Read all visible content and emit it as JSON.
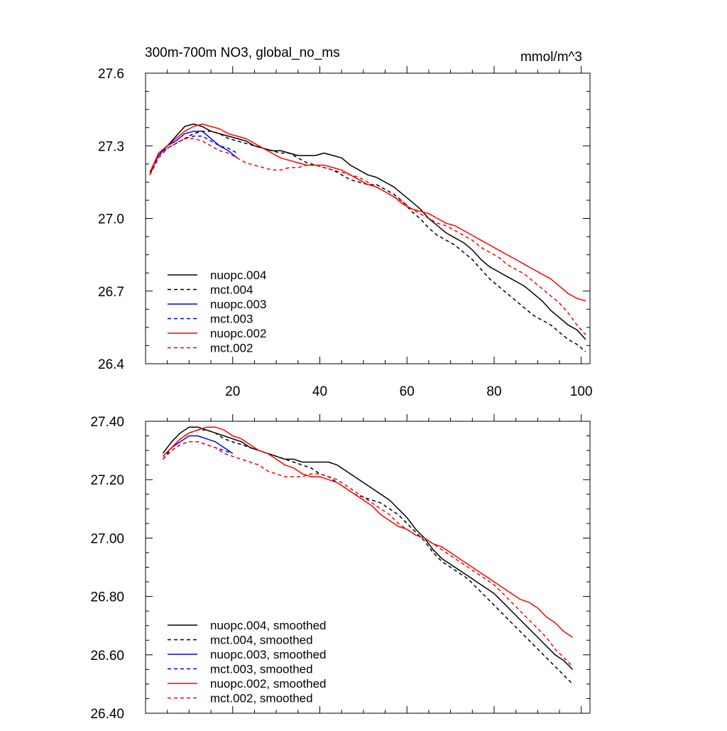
{
  "chart_data": [
    {
      "type": "line",
      "title": "300m-700m NO3, global_no_ms",
      "units": "mmol/m^3",
      "xlabel": "",
      "ylabel": "",
      "xlim": [
        0,
        102
      ],
      "ylim": [
        26.4,
        27.6
      ],
      "x_ticks": [
        20,
        40,
        60,
        80,
        100
      ],
      "y_ticks": [
        "26.4",
        "26.7",
        "27.0",
        "27.3",
        "27.6"
      ],
      "grid": false,
      "legend_position": "bottom-left",
      "series": [
        {
          "name": "nuopc.004",
          "color": "#000000",
          "dash": "solid",
          "x": [
            1,
            3,
            5,
            7,
            9,
            11,
            13,
            15,
            17,
            19,
            21,
            23,
            25,
            27,
            29,
            31,
            33,
            35,
            37,
            39,
            41,
            43,
            45,
            47,
            49,
            51,
            53,
            55,
            57,
            59,
            61,
            63,
            65,
            67,
            69,
            71,
            73,
            75,
            77,
            79,
            81,
            83,
            85,
            87,
            89,
            91,
            93,
            95,
            97,
            99,
            101
          ],
          "y": [
            27.18,
            27.27,
            27.3,
            27.34,
            27.38,
            27.39,
            27.38,
            27.36,
            27.35,
            27.34,
            27.33,
            27.32,
            27.3,
            27.29,
            27.28,
            27.28,
            27.27,
            27.26,
            27.26,
            27.26,
            27.27,
            27.26,
            27.25,
            27.22,
            27.2,
            27.18,
            27.17,
            27.15,
            27.13,
            27.1,
            27.07,
            27.04,
            27.0,
            26.97,
            26.94,
            26.92,
            26.9,
            26.87,
            26.83,
            26.8,
            26.78,
            26.76,
            26.74,
            26.72,
            26.69,
            26.66,
            26.62,
            26.59,
            26.56,
            26.54,
            26.5
          ]
        },
        {
          "name": "mct.004",
          "color": "#000000",
          "dash": "dashed",
          "x": [
            1,
            3,
            5,
            7,
            9,
            11,
            13,
            15,
            17,
            19,
            21,
            23,
            25,
            27,
            29,
            31,
            33,
            35,
            37,
            39,
            41,
            43,
            45,
            47,
            49,
            51,
            53,
            55,
            57,
            59,
            61,
            63,
            65,
            67,
            69,
            71,
            73,
            75,
            77,
            79,
            81,
            83,
            85,
            87,
            89,
            91,
            93,
            95,
            97,
            99,
            101
          ],
          "y": [
            27.18,
            27.25,
            27.29,
            27.31,
            27.33,
            27.35,
            27.36,
            27.36,
            27.35,
            27.33,
            27.32,
            27.31,
            27.3,
            27.29,
            27.28,
            27.27,
            27.27,
            27.25,
            27.23,
            27.22,
            27.21,
            27.2,
            27.18,
            27.16,
            27.15,
            27.14,
            27.14,
            27.12,
            27.1,
            27.07,
            27.03,
            27.0,
            26.96,
            26.93,
            26.91,
            26.89,
            26.86,
            26.83,
            26.79,
            26.75,
            26.72,
            26.69,
            26.66,
            26.63,
            26.6,
            26.58,
            26.56,
            26.53,
            26.5,
            26.48,
            26.45
          ]
        },
        {
          "name": "nuopc.003",
          "color": "#0000ff",
          "dash": "solid",
          "x": [
            1,
            3,
            5,
            7,
            9,
            11,
            13,
            15,
            17,
            19,
            21
          ],
          "y": [
            27.19,
            27.26,
            27.3,
            27.32,
            27.35,
            27.36,
            27.36,
            27.33,
            27.3,
            27.28,
            27.25
          ]
        },
        {
          "name": "mct.003",
          "color": "#0000ff",
          "dash": "dashed",
          "x": [
            1,
            3,
            5,
            7,
            9,
            11,
            13,
            15,
            17,
            19,
            21
          ],
          "y": [
            27.19,
            27.26,
            27.29,
            27.31,
            27.33,
            27.34,
            27.34,
            27.32,
            27.3,
            27.29,
            27.27
          ]
        },
        {
          "name": "nuopc.002",
          "color": "#ff0000",
          "dash": "solid",
          "x": [
            1,
            3,
            5,
            7,
            9,
            11,
            13,
            15,
            17,
            19,
            21,
            23,
            25,
            27,
            29,
            31,
            33,
            35,
            37,
            39,
            41,
            43,
            45,
            47,
            49,
            51,
            53,
            55,
            57,
            59,
            61,
            63,
            65,
            67,
            69,
            71,
            73,
            75,
            77,
            79,
            81,
            83,
            85,
            87,
            89,
            91,
            93,
            95,
            97,
            99,
            101
          ],
          "y": [
            27.19,
            27.27,
            27.3,
            27.33,
            27.36,
            27.38,
            27.39,
            27.38,
            27.37,
            27.35,
            27.34,
            27.33,
            27.31,
            27.29,
            27.27,
            27.25,
            27.24,
            27.23,
            27.22,
            27.22,
            27.22,
            27.21,
            27.2,
            27.18,
            27.16,
            27.14,
            27.13,
            27.11,
            27.09,
            27.06,
            27.04,
            27.03,
            27.02,
            27.0,
            26.98,
            26.97,
            26.95,
            26.93,
            26.91,
            26.89,
            26.87,
            26.85,
            26.83,
            26.81,
            26.79,
            26.77,
            26.75,
            26.72,
            26.69,
            26.67,
            26.66
          ]
        },
        {
          "name": "mct.002",
          "color": "#ff0000",
          "dash": "dashed",
          "x": [
            1,
            3,
            5,
            7,
            9,
            11,
            13,
            15,
            17,
            19,
            21,
            23,
            25,
            27,
            29,
            31,
            33,
            35,
            37,
            39,
            41,
            43,
            45,
            47,
            49,
            51,
            53,
            55,
            57,
            59,
            61,
            63,
            65,
            67,
            69,
            71,
            73,
            75,
            77,
            79,
            81,
            83,
            85,
            87,
            89,
            91,
            93,
            95,
            97,
            99,
            101
          ],
          "y": [
            27.18,
            27.25,
            27.29,
            27.31,
            27.33,
            27.33,
            27.32,
            27.3,
            27.28,
            27.27,
            27.25,
            27.23,
            27.22,
            27.21,
            27.2,
            27.2,
            27.21,
            27.21,
            27.22,
            27.22,
            27.21,
            27.2,
            27.19,
            27.18,
            27.17,
            27.15,
            27.13,
            27.11,
            27.09,
            27.07,
            27.04,
            27.02,
            27.0,
            26.98,
            26.97,
            26.95,
            26.93,
            26.91,
            26.88,
            26.86,
            26.84,
            26.81,
            26.79,
            26.77,
            26.74,
            26.71,
            26.68,
            26.65,
            26.61,
            26.56,
            26.52
          ]
        }
      ],
      "legend": [
        "nuopc.004",
        "mct.004",
        "nuopc.003",
        "mct.003",
        "nuopc.002",
        "mct.002"
      ]
    },
    {
      "type": "line",
      "title": "",
      "xlabel": "",
      "ylabel": "",
      "xlim": [
        0,
        102
      ],
      "ylim": [
        26.4,
        27.4
      ],
      "x_ticks": [
        20,
        40,
        60,
        80,
        100
      ],
      "y_ticks": [
        "26.40",
        "26.60",
        "26.80",
        "27.00",
        "27.20",
        "27.40"
      ],
      "grid": false,
      "legend_position": "bottom-left",
      "series": [
        {
          "name": "nuopc.004, smoothed",
          "color": "#000000",
          "dash": "solid",
          "x": [
            4,
            6,
            8,
            10,
            12,
            14,
            16,
            18,
            20,
            22,
            24,
            26,
            28,
            30,
            32,
            34,
            36,
            38,
            40,
            42,
            44,
            46,
            48,
            50,
            52,
            54,
            56,
            58,
            60,
            62,
            64,
            66,
            68,
            70,
            72,
            74,
            76,
            78,
            80,
            82,
            84,
            86,
            88,
            90,
            92,
            94,
            96,
            98
          ],
          "y": [
            27.29,
            27.33,
            27.36,
            27.38,
            27.38,
            27.37,
            27.36,
            27.35,
            27.34,
            27.33,
            27.31,
            27.3,
            27.29,
            27.28,
            27.27,
            27.27,
            27.26,
            27.26,
            27.26,
            27.26,
            27.25,
            27.23,
            27.21,
            27.19,
            27.17,
            27.15,
            27.13,
            27.1,
            27.07,
            27.03,
            27.0,
            26.96,
            26.93,
            26.91,
            26.89,
            26.87,
            26.85,
            26.83,
            26.81,
            26.78,
            26.75,
            26.72,
            26.69,
            26.66,
            26.63,
            26.6,
            26.58,
            26.55
          ]
        },
        {
          "name": "mct.004, smoothed",
          "color": "#000000",
          "dash": "dashed",
          "x": [
            4,
            6,
            8,
            10,
            12,
            14,
            16,
            18,
            20,
            22,
            24,
            26,
            28,
            30,
            32,
            34,
            36,
            38,
            40,
            42,
            44,
            46,
            48,
            50,
            52,
            54,
            56,
            58,
            60,
            62,
            64,
            66,
            68,
            70,
            72,
            74,
            76,
            78,
            80,
            82,
            84,
            86,
            88,
            90,
            92,
            94,
            96,
            98
          ],
          "y": [
            27.27,
            27.31,
            27.34,
            27.36,
            27.37,
            27.37,
            27.36,
            27.34,
            27.33,
            27.32,
            27.31,
            27.3,
            27.29,
            27.28,
            27.27,
            27.26,
            27.25,
            27.24,
            27.22,
            27.21,
            27.19,
            27.17,
            27.15,
            27.14,
            27.13,
            27.12,
            27.1,
            27.08,
            27.05,
            27.02,
            26.99,
            26.95,
            26.92,
            26.9,
            26.88,
            26.86,
            26.83,
            26.8,
            26.77,
            26.74,
            26.71,
            26.68,
            26.65,
            26.62,
            26.59,
            26.56,
            26.53,
            26.5
          ]
        },
        {
          "name": "nuopc.003, smoothed",
          "color": "#0000ff",
          "dash": "solid",
          "x": [
            4,
            6,
            8,
            10,
            12,
            14,
            16,
            18,
            20
          ],
          "y": [
            27.28,
            27.31,
            27.33,
            27.35,
            27.35,
            27.34,
            27.33,
            27.31,
            27.29
          ]
        },
        {
          "name": "mct.003, smoothed",
          "color": "#0000ff",
          "dash": "dashed",
          "x": [
            4,
            6,
            8,
            10,
            12,
            14,
            16,
            18,
            20
          ],
          "y": [
            27.27,
            27.3,
            27.32,
            27.33,
            27.33,
            27.32,
            27.31,
            27.3,
            27.29
          ]
        },
        {
          "name": "nuopc.002, smoothed",
          "color": "#ff0000",
          "dash": "solid",
          "x": [
            4,
            6,
            8,
            10,
            12,
            14,
            16,
            18,
            20,
            22,
            24,
            26,
            28,
            30,
            32,
            34,
            36,
            38,
            40,
            42,
            44,
            46,
            48,
            50,
            52,
            54,
            56,
            58,
            60,
            62,
            64,
            66,
            68,
            70,
            72,
            74,
            76,
            78,
            80,
            82,
            84,
            86,
            88,
            90,
            92,
            94,
            96,
            98
          ],
          "y": [
            27.28,
            27.31,
            27.34,
            27.36,
            27.37,
            27.38,
            27.38,
            27.37,
            27.35,
            27.34,
            27.32,
            27.3,
            27.29,
            27.27,
            27.25,
            27.24,
            27.22,
            27.21,
            27.21,
            27.2,
            27.19,
            27.17,
            27.15,
            27.13,
            27.11,
            27.08,
            27.06,
            27.04,
            27.03,
            27.01,
            27.0,
            26.98,
            26.97,
            26.95,
            26.93,
            26.91,
            26.89,
            26.87,
            26.85,
            26.83,
            26.81,
            26.79,
            26.78,
            26.76,
            26.73,
            26.71,
            26.68,
            26.66
          ]
        },
        {
          "name": "mct.002, smoothed",
          "color": "#ff0000",
          "dash": "dashed",
          "x": [
            4,
            6,
            8,
            10,
            12,
            14,
            16,
            18,
            20,
            22,
            24,
            26,
            28,
            30,
            32,
            34,
            36,
            38,
            40,
            42,
            44,
            46,
            48,
            50,
            52,
            54,
            56,
            58,
            60,
            62,
            64,
            66,
            68,
            70,
            72,
            74,
            76,
            78,
            80,
            82,
            84,
            86,
            88,
            90,
            92,
            94,
            96,
            98
          ],
          "y": [
            27.27,
            27.3,
            27.32,
            27.33,
            27.33,
            27.32,
            27.31,
            27.29,
            27.28,
            27.27,
            27.26,
            27.25,
            27.23,
            27.22,
            27.21,
            27.21,
            27.21,
            27.22,
            27.22,
            27.21,
            27.2,
            27.18,
            27.16,
            27.14,
            27.12,
            27.1,
            27.08,
            27.05,
            27.03,
            27.01,
            27.0,
            26.98,
            26.96,
            26.94,
            26.92,
            26.9,
            26.88,
            26.86,
            26.84,
            26.81,
            26.78,
            26.75,
            26.72,
            26.69,
            26.66,
            26.62,
            26.59,
            26.56
          ]
        }
      ],
      "legend": [
        "nuopc.004, smoothed",
        "mct.004, smoothed",
        "nuopc.003, smoothed",
        "mct.003, smoothed",
        "nuopc.002, smoothed",
        "mct.002, smoothed"
      ]
    }
  ]
}
